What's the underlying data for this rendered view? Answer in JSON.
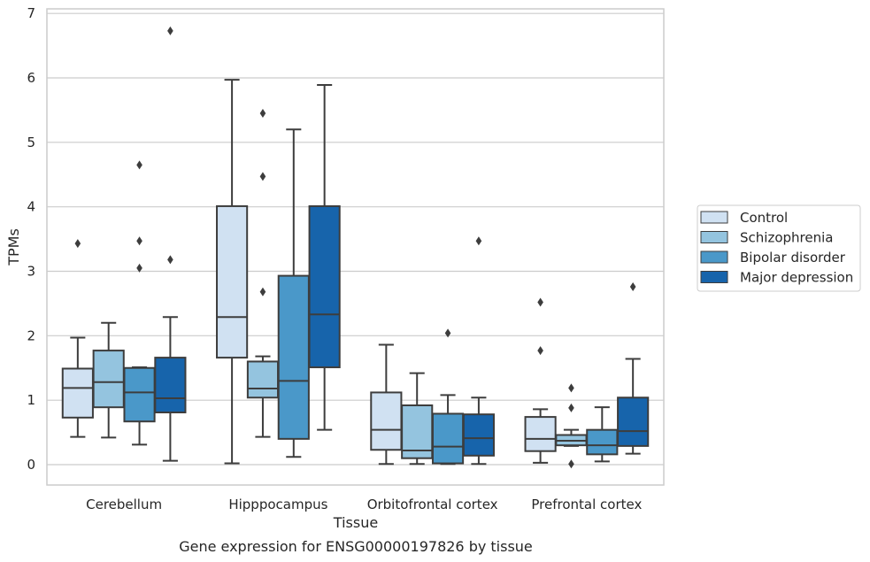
{
  "chart_data": {
    "type": "box",
    "title": "Gene expression for ENSG00000197826 by tissue",
    "xlabel": "Tissue",
    "ylabel": "TPMs",
    "ylim": [
      -0.3,
      7.05
    ],
    "yticks": [
      0,
      1,
      2,
      3,
      4,
      5,
      6,
      7
    ],
    "grid": true,
    "legend_position": "right",
    "categories": [
      "Cerebellum",
      "Hipppocampus",
      "Orbitofrontal cortex",
      "Prefrontal cortex"
    ],
    "series": [
      {
        "name": "Control",
        "color": "#d0e1f2",
        "boxes": [
          {
            "whislo": 0.43,
            "q1": 0.73,
            "med": 1.19,
            "q3": 1.49,
            "whishi": 1.97,
            "fliers": [
              3.43
            ]
          },
          {
            "whislo": 0.02,
            "q1": 1.66,
            "med": 2.29,
            "q3": 4.01,
            "whishi": 5.97,
            "fliers": []
          },
          {
            "whislo": 0.01,
            "q1": 0.23,
            "med": 0.54,
            "q3": 1.12,
            "whishi": 1.86,
            "fliers": []
          },
          {
            "whislo": 0.03,
            "q1": 0.21,
            "med": 0.4,
            "q3": 0.74,
            "whishi": 0.86,
            "fliers": [
              2.52,
              1.77
            ]
          }
        ]
      },
      {
        "name": "Schizophrenia",
        "color": "#94c4df",
        "boxes": [
          {
            "whislo": 0.42,
            "q1": 0.89,
            "med": 1.28,
            "q3": 1.77,
            "whishi": 2.2,
            "fliers": []
          },
          {
            "whislo": 0.43,
            "q1": 1.04,
            "med": 1.18,
            "q3": 1.6,
            "whishi": 1.68,
            "fliers": [
              5.45,
              4.47,
              2.68
            ]
          },
          {
            "whislo": 0.01,
            "q1": 0.1,
            "med": 0.22,
            "q3": 0.92,
            "whishi": 1.42,
            "fliers": []
          },
          {
            "whislo": 0.29,
            "q1": 0.3,
            "med": 0.37,
            "q3": 0.46,
            "whishi": 0.54,
            "fliers": [
              1.19,
              0.88,
              0.01
            ]
          }
        ]
      },
      {
        "name": "Bipolar disorder",
        "color": "#4a98c9",
        "boxes": [
          {
            "whislo": 0.31,
            "q1": 0.67,
            "med": 1.12,
            "q3": 1.5,
            "whishi": 1.51,
            "fliers": [
              4.65,
              3.47,
              3.05
            ]
          },
          {
            "whislo": 0.12,
            "q1": 0.4,
            "med": 1.3,
            "q3": 2.93,
            "whishi": 5.2,
            "fliers": []
          },
          {
            "whislo": 0.01,
            "q1": 0.02,
            "med": 0.28,
            "q3": 0.79,
            "whishi": 1.08,
            "fliers": [
              2.04
            ]
          },
          {
            "whislo": 0.05,
            "q1": 0.16,
            "med": 0.3,
            "q3": 0.54,
            "whishi": 0.89,
            "fliers": []
          }
        ]
      },
      {
        "name": "Major depression",
        "color": "#1764ab",
        "boxes": [
          {
            "whislo": 0.06,
            "q1": 0.81,
            "med": 1.03,
            "q3": 1.66,
            "whishi": 2.29,
            "fliers": [
              6.73,
              3.18
            ]
          },
          {
            "whislo": 0.54,
            "q1": 1.51,
            "med": 2.33,
            "q3": 4.01,
            "whishi": 5.89,
            "fliers": []
          },
          {
            "whislo": 0.01,
            "q1": 0.14,
            "med": 0.41,
            "q3": 0.78,
            "whishi": 1.04,
            "fliers": [
              3.47
            ]
          },
          {
            "whislo": 0.17,
            "q1": 0.29,
            "med": 0.52,
            "q3": 1.04,
            "whishi": 1.64,
            "fliers": [
              2.76
            ]
          }
        ]
      }
    ]
  }
}
